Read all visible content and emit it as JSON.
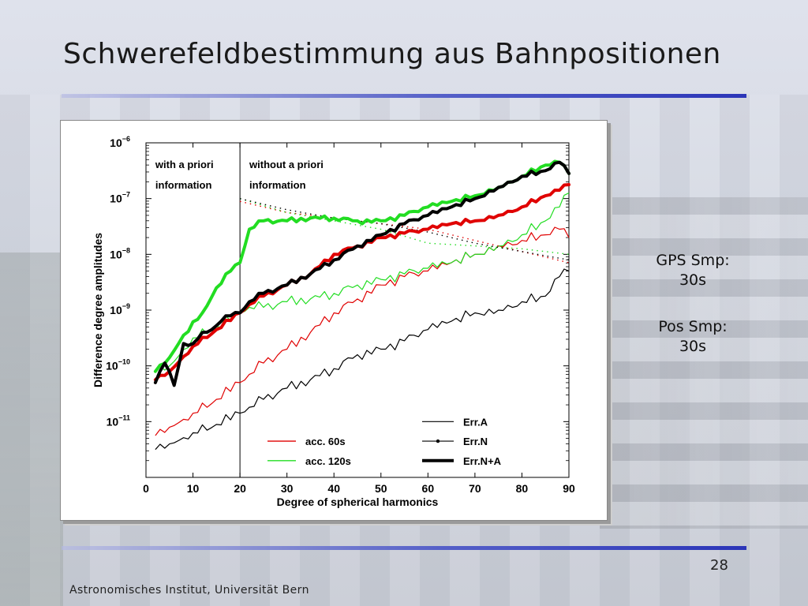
{
  "slide": {
    "title": "Schwerefeldbestimmung aus Bahnpositionen",
    "side_notes": [
      {
        "label": "GPS Smp:",
        "value": "30s"
      },
      {
        "label": "Pos Smp:",
        "value": "30s"
      }
    ],
    "page_number": "28",
    "footer": "Astronomisches Institut, Universität Bern"
  },
  "chart_data": {
    "type": "line",
    "title": "",
    "xlabel": "Degree of spherical harmonics",
    "ylabel": "Difference degree amplitudes",
    "xlim": [
      0,
      90
    ],
    "ylim_log10": [
      -12,
      -6
    ],
    "xticks": [
      {
        "value": 0,
        "label": "0"
      },
      {
        "value": 10,
        "label": "10"
      },
      {
        "value": 20,
        "label": "20"
      },
      {
        "value": 30,
        "label": "30"
      },
      {
        "value": 40,
        "label": "40"
      },
      {
        "value": 50,
        "label": "50"
      },
      {
        "value": 60,
        "label": "60"
      },
      {
        "value": 70,
        "label": "70"
      },
      {
        "value": 80,
        "label": "80"
      },
      {
        "value": 90,
        "label": "90"
      }
    ],
    "yticks": [
      {
        "value": -6,
        "mantissa": "10",
        "exponent": "−6"
      },
      {
        "value": -7,
        "mantissa": "10",
        "exponent": "−7"
      },
      {
        "value": -8,
        "mantissa": "10",
        "exponent": "−8"
      },
      {
        "value": -9,
        "mantissa": "10",
        "exponent": "−9"
      },
      {
        "value": -10,
        "mantissa": "10",
        "exponent": "−10"
      },
      {
        "value": -11,
        "mantissa": "10",
        "exponent": "−11"
      }
    ],
    "divider_x": 20,
    "region_labels": [
      {
        "x": 2,
        "y": -6.45,
        "line1": "with a priori",
        "line2": "information"
      },
      {
        "x": 22,
        "y": -6.45,
        "line1": "without a priori",
        "line2": "information"
      }
    ],
    "colors": {
      "red": "#e00000",
      "green": "#22dd22",
      "black": "#000000"
    },
    "legend": {
      "position": "bottom-right",
      "colors": [
        {
          "label": "acc. 60s",
          "color": "#e00000"
        },
        {
          "label": "acc. 120s",
          "color": "#22dd22"
        }
      ],
      "styles": [
        {
          "label": "Err.A",
          "style": "thin"
        },
        {
          "label": "Err.N",
          "style": "dotted"
        },
        {
          "label": "Err.N+A",
          "style": "thick"
        }
      ]
    },
    "series": [
      {
        "color": "red",
        "style": "thin",
        "x": [
          2,
          5,
          10,
          15,
          20,
          25,
          30,
          35,
          40,
          45,
          50,
          55,
          60,
          65,
          70,
          75,
          80,
          85,
          88,
          90
        ],
        "y": [
          -11.25,
          -11.1,
          -10.85,
          -10.6,
          -10.3,
          -9.95,
          -9.7,
          -9.4,
          -9.05,
          -8.8,
          -8.55,
          -8.4,
          -8.3,
          -8.15,
          -8.0,
          -7.85,
          -7.75,
          -7.65,
          -7.55,
          -7.7
        ]
      },
      {
        "color": "green",
        "style": "thin",
        "x": [
          2,
          5,
          10,
          15,
          20,
          22,
          25,
          30,
          35,
          40,
          45,
          50,
          55,
          60,
          65,
          70,
          75,
          80,
          85,
          88,
          90
        ],
        "y": [
          -10.1,
          -10.0,
          -9.5,
          -9.3,
          -9.05,
          -8.95,
          -8.95,
          -8.85,
          -8.8,
          -8.7,
          -8.55,
          -8.45,
          -8.35,
          -8.25,
          -8.15,
          -8.0,
          -7.85,
          -7.65,
          -7.4,
          -7.15,
          -6.9
        ]
      },
      {
        "color": "red",
        "style": "dotted",
        "x": [
          20,
          30,
          40,
          50,
          60,
          70,
          80,
          90
        ],
        "y": [
          -7.05,
          -7.25,
          -7.35,
          -7.45,
          -7.55,
          -7.75,
          -7.95,
          -8.15
        ]
      },
      {
        "color": "green",
        "style": "dotted",
        "x": [
          20,
          30,
          40,
          50,
          60,
          70,
          80,
          90
        ],
        "y": [
          -7.0,
          -7.25,
          -7.4,
          -7.55,
          -7.8,
          -7.85,
          -7.9,
          -8.0
        ]
      },
      {
        "color": "black",
        "style": "dotted",
        "x": [
          20,
          30,
          40,
          50,
          60,
          70,
          80,
          90
        ],
        "y": [
          -7.0,
          -7.2,
          -7.35,
          -7.45,
          -7.6,
          -7.8,
          -7.95,
          -8.1
        ]
      },
      {
        "color": "red",
        "style": "thick",
        "x": [
          2,
          5,
          10,
          15,
          20,
          22,
          25,
          30,
          35,
          40,
          45,
          50,
          55,
          60,
          65,
          70,
          75,
          80,
          85,
          88,
          90
        ],
        "y": [
          -10.25,
          -10.1,
          -9.65,
          -9.35,
          -9.05,
          -8.9,
          -8.75,
          -8.55,
          -8.35,
          -8.0,
          -7.85,
          -7.7,
          -7.62,
          -7.55,
          -7.45,
          -7.4,
          -7.3,
          -7.15,
          -6.95,
          -6.85,
          -6.75
        ]
      },
      {
        "color": "green",
        "style": "thick",
        "x": [
          2,
          5,
          8,
          12,
          15,
          18,
          20,
          22,
          25,
          30,
          35,
          40,
          45,
          50,
          55,
          60,
          65,
          70,
          75,
          80,
          85,
          88,
          90
        ],
        "y": [
          -10.1,
          -9.85,
          -9.45,
          -9.05,
          -8.6,
          -8.3,
          -8.15,
          -7.55,
          -7.4,
          -7.4,
          -7.35,
          -7.35,
          -7.4,
          -7.4,
          -7.3,
          -7.15,
          -7.05,
          -6.95,
          -6.8,
          -6.6,
          -6.4,
          -6.35,
          -6.55
        ]
      },
      {
        "color": "black",
        "style": "thin",
        "x": [
          2,
          5,
          10,
          15,
          20,
          25,
          30,
          35,
          40,
          45,
          50,
          55,
          60,
          65,
          70,
          75,
          80,
          85,
          88,
          90
        ],
        "y": [
          -11.5,
          -11.4,
          -11.2,
          -11.05,
          -10.85,
          -10.6,
          -10.4,
          -10.25,
          -10.05,
          -9.8,
          -9.7,
          -9.55,
          -9.35,
          -9.2,
          -9.05,
          -9.0,
          -8.85,
          -8.75,
          -8.4,
          -8.3
        ]
      },
      {
        "color": "black",
        "style": "thick",
        "x": [
          2,
          4,
          6,
          8,
          10,
          12,
          14,
          16,
          18,
          20,
          22,
          25,
          30,
          35,
          40,
          45,
          50,
          55,
          60,
          65,
          70,
          75,
          80,
          85,
          88,
          90
        ],
        "y": [
          -10.3,
          -9.95,
          -10.35,
          -9.6,
          -9.6,
          -9.4,
          -9.35,
          -9.2,
          -9.1,
          -9.05,
          -8.85,
          -8.7,
          -8.55,
          -8.35,
          -8.1,
          -7.85,
          -7.65,
          -7.45,
          -7.3,
          -7.15,
          -7.0,
          -6.8,
          -6.6,
          -6.5,
          -6.35,
          -6.55
        ]
      }
    ]
  }
}
